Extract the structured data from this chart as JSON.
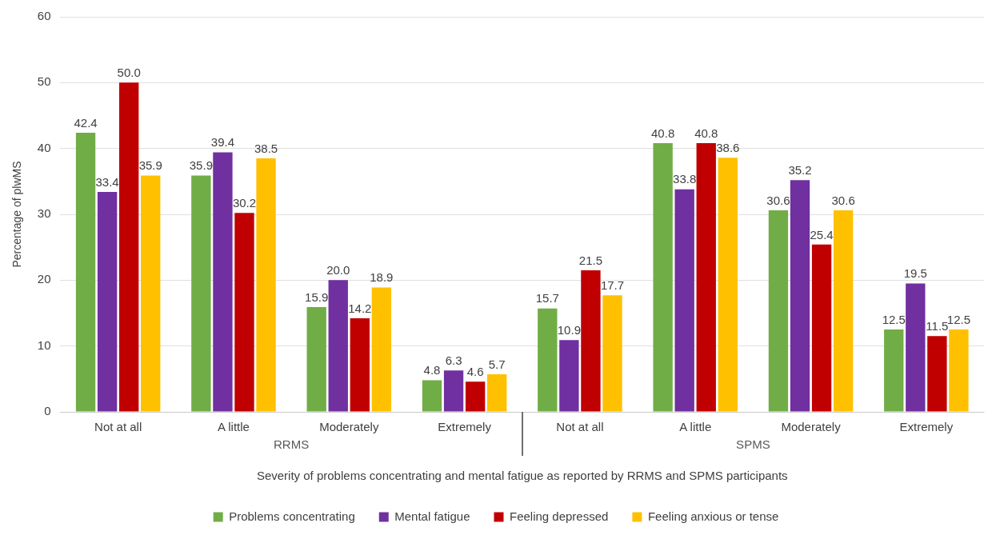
{
  "chart_data": {
    "type": "bar",
    "xlabel": "Severity of problems concentrating and mental fatigue as reported by RRMS and SPMS participants",
    "ylabel": "Percentage of plwMS",
    "categories": [
      "Not at all",
      "A little",
      "Moderately",
      "Extremely",
      "Not at all",
      "A little",
      "Moderately",
      "Extremely"
    ],
    "annotations": [
      "RRMS",
      "SPMS"
    ],
    "series": [
      {
        "name": "Problems concentrating",
        "color": "#70ad47",
        "values": [
          42.4,
          35.9,
          15.9,
          4.8,
          15.7,
          40.8,
          30.6,
          12.5
        ],
        "value_labels": [
          "42.4",
          "35.9",
          "15.9",
          "4.8",
          "15.7",
          "40.8",
          "30.6",
          "12.5"
        ]
      },
      {
        "name": "Mental fatigue",
        "color": "#7030a0",
        "values": [
          33.4,
          39.4,
          20.0,
          6.3,
          10.9,
          33.8,
          35.2,
          19.5
        ],
        "value_labels": [
          "33.4",
          "39.4",
          "20.0",
          "6.3",
          "10.9",
          "33.8",
          "35.2",
          "19.5"
        ]
      },
      {
        "name": "Feeling depressed",
        "color": "#c00000",
        "values": [
          50.0,
          30.2,
          14.2,
          4.6,
          21.5,
          40.8,
          25.4,
          11.5
        ],
        "value_labels": [
          "50.0",
          "30.2",
          "14.2",
          "4.6",
          "21.5",
          "40.8",
          "25.4",
          "11.5"
        ]
      },
      {
        "name": "Feeling anxious or tense",
        "color": "#ffc000",
        "values": [
          35.9,
          38.5,
          18.9,
          5.7,
          17.7,
          38.6,
          30.6,
          12.5
        ],
        "value_labels": [
          "35.9",
          "38.5",
          "18.9",
          "5.7",
          "17.7",
          "38.6",
          "30.6",
          "12.5"
        ]
      }
    ],
    "ylim": [
      0,
      60
    ],
    "yticks": [
      0,
      10,
      20,
      30,
      40,
      50,
      60
    ],
    "grid": "y",
    "legend": "bottom"
  }
}
